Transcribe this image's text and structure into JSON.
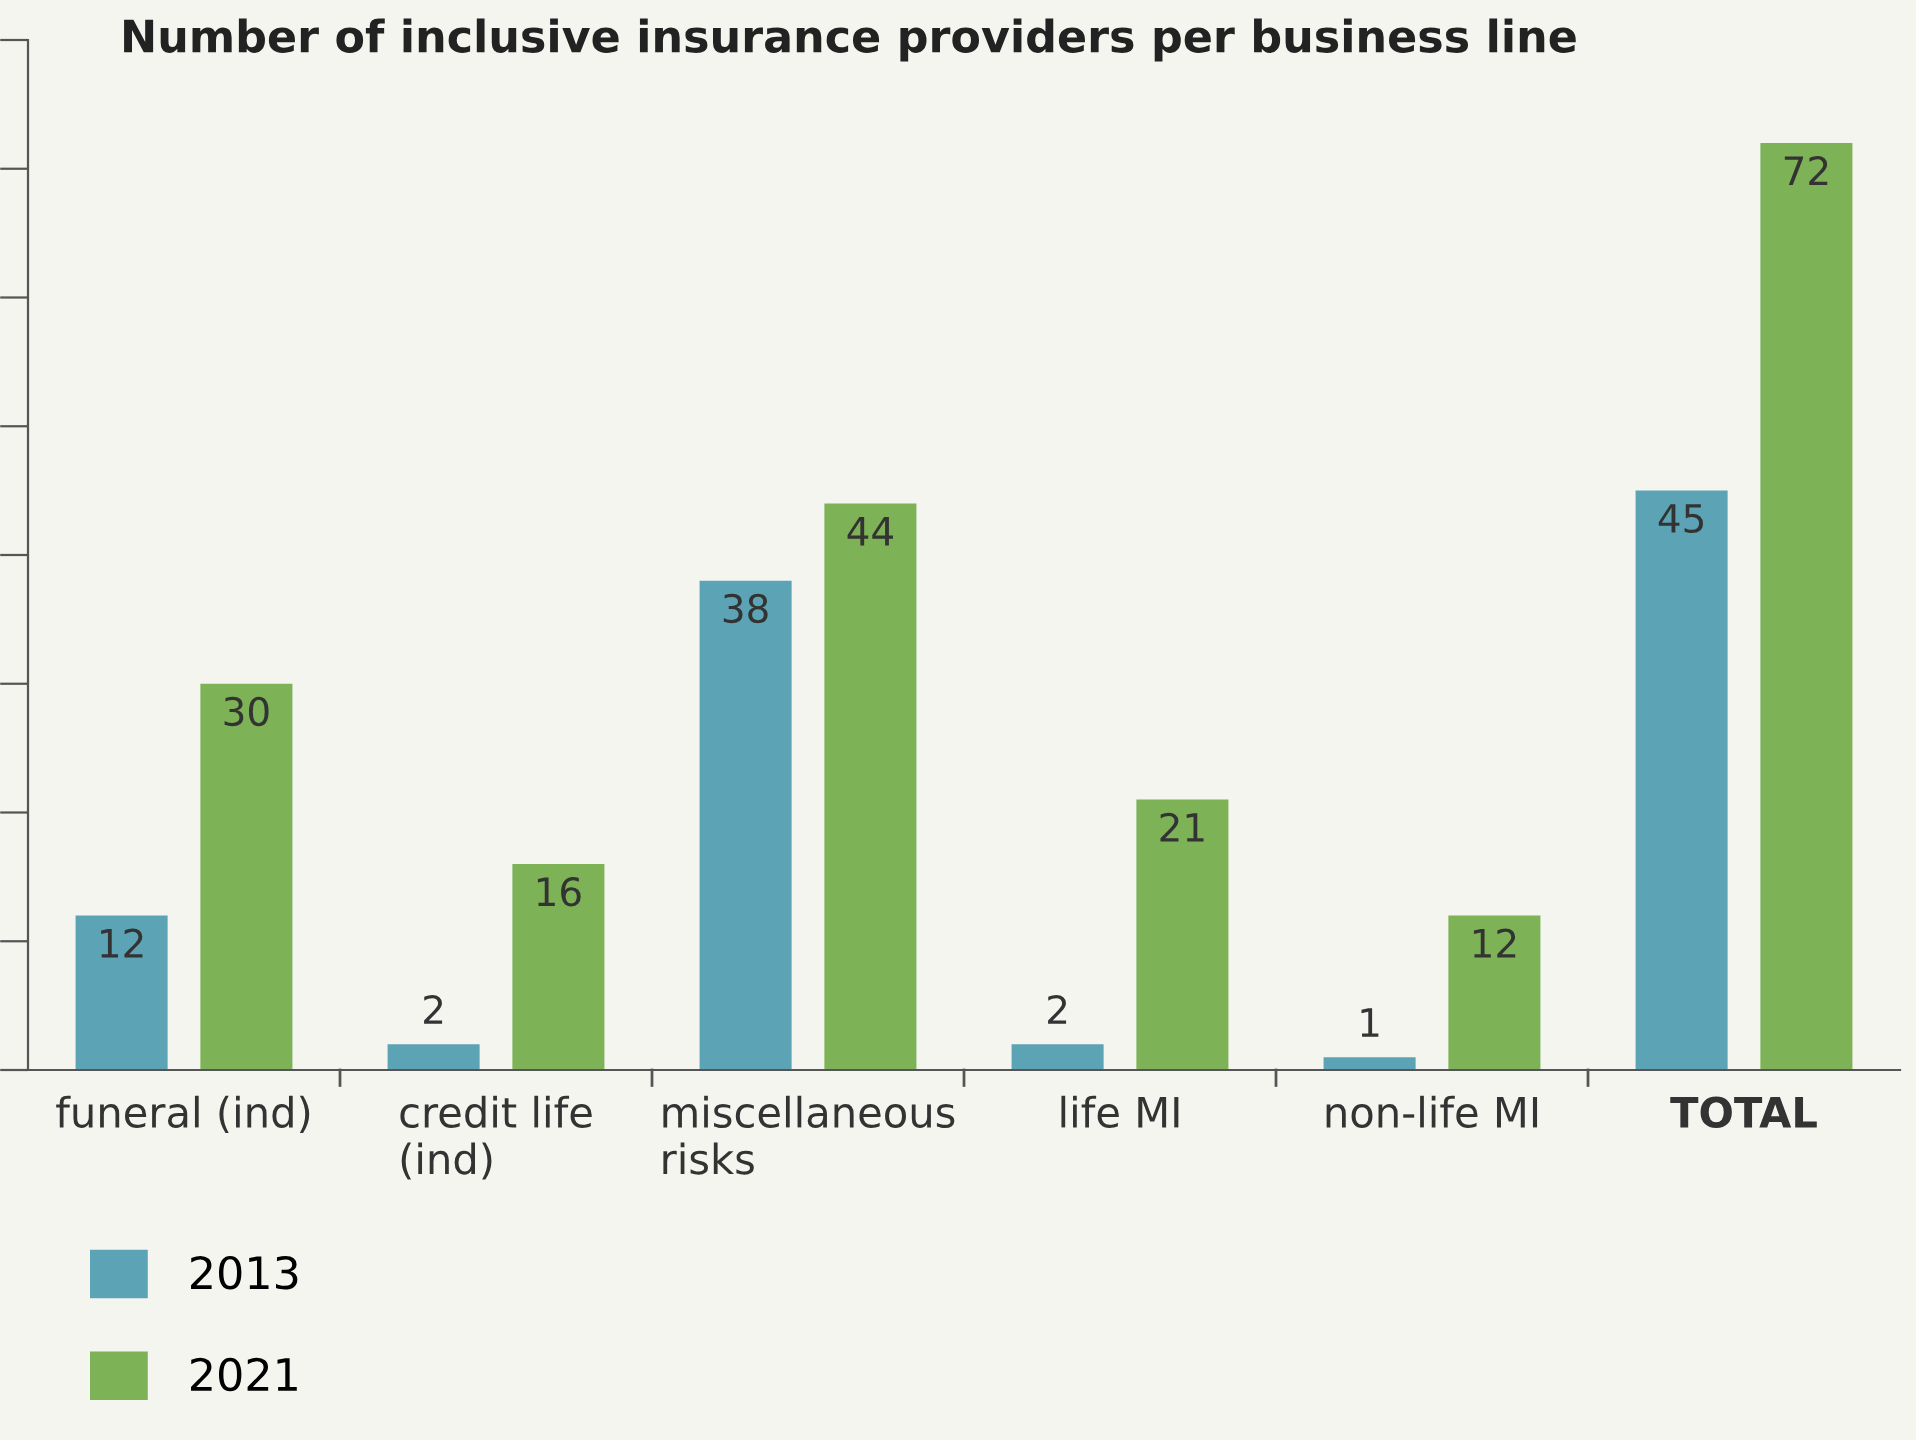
{
  "chart_data": {
    "type": "bar",
    "title": "Number of inclusive insurance providers per business line",
    "categories": [
      "funeral (ind)",
      "credit life\n(ind)",
      "miscellaneous\nrisks",
      "life MI",
      "non-life MI",
      "TOTAL"
    ],
    "series": [
      {
        "name": "2013",
        "color": "#5ba3b5",
        "values": [
          12,
          2,
          38,
          2,
          1,
          45
        ]
      },
      {
        "name": "2021",
        "color": "#7db356",
        "values": [
          30,
          16,
          44,
          21,
          12,
          72
        ]
      }
    ],
    "ylim": [
      0,
      80
    ],
    "yticks": [
      {
        "value": 0,
        "label": null
      },
      {
        "value": 10,
        "label": null
      },
      {
        "value": 20,
        "label": null
      },
      {
        "value": 30,
        "label": null
      },
      {
        "value": 40,
        "label": null
      },
      {
        "value": 50,
        "label": null
      },
      {
        "value": 60,
        "label": null
      },
      {
        "value": 70,
        "label": null
      },
      {
        "value": 80,
        "label": null
      }
    ],
    "data_labels": true,
    "grid": false,
    "legend": "bottom left",
    "tick_labels": "x"
  }
}
